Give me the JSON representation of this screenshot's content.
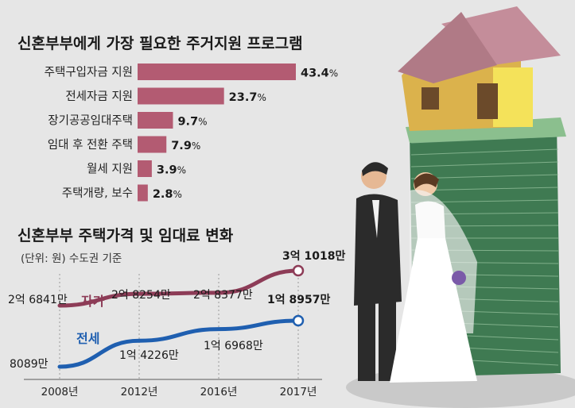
{
  "chart_data": [
    {
      "type": "bar",
      "title": "신혼부부에게 가장 필요한 주거지원 프로그램",
      "categories": [
        "주택구입자금 지원",
        "전세자금 지원",
        "장기공공임대주택",
        "임대 후 전환 주택",
        "월세 지원",
        "주택개량, 보수"
      ],
      "values": [
        43.4,
        23.7,
        9.7,
        7.9,
        3.9,
        2.8
      ],
      "value_labels": [
        "43.4",
        "23.7",
        "9.7",
        "7.9",
        "3.9",
        "2.8"
      ],
      "unit": "%",
      "orientation": "horizontal",
      "xlim": [
        0,
        43.4
      ],
      "color": "#b35b72"
    },
    {
      "type": "line",
      "title": "신혼부부 주택가격 및 임대료 변화",
      "subtitle": "(단위: 원) 수도권 기준",
      "x": [
        "2008년",
        "2012년",
        "2016년",
        "2017년"
      ],
      "unit": "만원",
      "series": [
        {
          "name": "자가",
          "values": [
            26841,
            28254,
            28377,
            31018
          ],
          "labels": [
            "2억 6841만",
            "2억 8254만",
            "2억 8377만",
            "3억 1018만"
          ],
          "color": "#8d3c57"
        },
        {
          "name": "전세",
          "values": [
            8089,
            14226,
            16968,
            18957
          ],
          "labels": [
            "8089만",
            "1억 4226만",
            "1억 6968만",
            "1억 8957만"
          ],
          "color": "#1f5fb0"
        }
      ]
    }
  ],
  "colors": {
    "background": "#e6e6e6",
    "bar": "#b35b72",
    "own_line": "#8d3c57",
    "jeonse_line": "#1f5fb0"
  },
  "illustration": {
    "name": "newlywed-couple-house-money-illustration"
  }
}
